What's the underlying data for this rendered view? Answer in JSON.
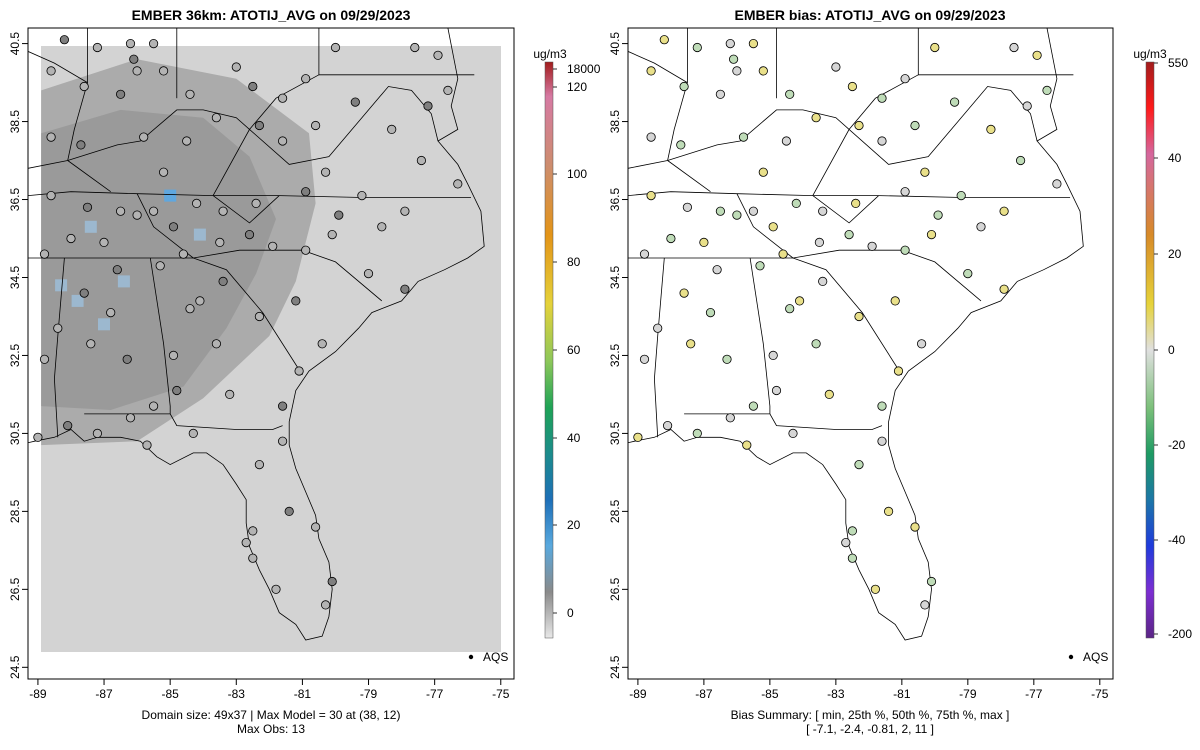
{
  "panels": [
    {
      "title": "EMBER 36km: ATOTIJ_AVG on 09/29/2023",
      "footer": [
        "Domain size: 49x37 | Max Model = 30 at (38, 12)",
        "Max Obs: 13"
      ],
      "legend_label": "AQS",
      "colorbar": {
        "unit": "ug/m3",
        "ticks": [
          "18000",
          "120",
          "100",
          "80",
          "60",
          "40",
          "20",
          "0"
        ]
      }
    },
    {
      "title": "EMBER bias: ATOTIJ_AVG on 09/29/2023",
      "footer": [
        "Bias Summary: [ min, 25th %, 50th %, 75th %, max ]",
        "[ -7.1,   -2.4,   -0.81,   2,   11 ]"
      ],
      "legend_label": "AQS",
      "colorbar": {
        "unit": "ug/m3",
        "ticks": [
          "550",
          "40",
          "20",
          "0",
          "-20",
          "-40",
          "-200"
        ]
      }
    }
  ],
  "axes": {
    "x_ticks": [
      "-89",
      "-87",
      "-85",
      "-83",
      "-81",
      "-79",
      "-77",
      "-75"
    ],
    "y_ticks": [
      "40.5",
      "38.5",
      "36.5",
      "34.5",
      "32.5",
      "30.5",
      "28.5",
      "26.5",
      "24.5"
    ],
    "xlim": [
      -89.3,
      -74.6
    ],
    "ylim": [
      24.2,
      40.9
    ]
  },
  "colors": {
    "domain_fill": "#d3d3d3",
    "model_dark": "#9a9a9a",
    "model_mid": "#ababab",
    "model_high": "#5fa7df",
    "bias_positive": "#e9e08a",
    "bias_near_zero": "#d6d6d6",
    "bias_negative": "#bfdcb8"
  },
  "chart_data": {
    "type": "map",
    "stations": [
      {
        "lon": -88.2,
        "lat": 40.6
      },
      {
        "lon": -87.2,
        "lat": 40.4
      },
      {
        "lon": -86.2,
        "lat": 40.5
      },
      {
        "lon": -85.5,
        "lat": 40.5
      },
      {
        "lon": -86.1,
        "lat": 40.1
      },
      {
        "lon": -86.0,
        "lat": 39.8
      },
      {
        "lon": -88.6,
        "lat": 39.8
      },
      {
        "lon": -87.6,
        "lat": 39.4
      },
      {
        "lon": -86.5,
        "lat": 39.2
      },
      {
        "lon": -85.2,
        "lat": 39.8
      },
      {
        "lon": -84.4,
        "lat": 39.2
      },
      {
        "lon": -83.0,
        "lat": 39.9
      },
      {
        "lon": -82.5,
        "lat": 39.4
      },
      {
        "lon": -81.6,
        "lat": 39.1
      },
      {
        "lon": -80.9,
        "lat": 39.6
      },
      {
        "lon": -80.0,
        "lat": 40.4
      },
      {
        "lon": -79.4,
        "lat": 39.0
      },
      {
        "lon": -77.6,
        "lat": 40.4
      },
      {
        "lon": -76.9,
        "lat": 40.2
      },
      {
        "lon": -76.6,
        "lat": 39.3
      },
      {
        "lon": -77.2,
        "lat": 38.9
      },
      {
        "lon": -78.3,
        "lat": 38.3
      },
      {
        "lon": -85.8,
        "lat": 38.1
      },
      {
        "lon": -84.5,
        "lat": 38.0
      },
      {
        "lon": -82.3,
        "lat": 38.4
      },
      {
        "lon": -80.6,
        "lat": 38.4
      },
      {
        "lon": -81.6,
        "lat": 38.0
      },
      {
        "lon": -83.6,
        "lat": 38.6
      },
      {
        "lon": -87.7,
        "lat": 37.9
      },
      {
        "lon": -88.6,
        "lat": 38.1
      },
      {
        "lon": -85.2,
        "lat": 37.2
      },
      {
        "lon": -86.5,
        "lat": 36.2
      },
      {
        "lon": -87.5,
        "lat": 36.3
      },
      {
        "lon": -88.6,
        "lat": 36.6
      },
      {
        "lon": -86.0,
        "lat": 36.1
      },
      {
        "lon": -85.5,
        "lat": 36.2
      },
      {
        "lon": -84.9,
        "lat": 35.8
      },
      {
        "lon": -84.2,
        "lat": 36.4
      },
      {
        "lon": -83.4,
        "lat": 36.2
      },
      {
        "lon": -82.4,
        "lat": 36.4
      },
      {
        "lon": -82.6,
        "lat": 35.6
      },
      {
        "lon": -83.5,
        "lat": 35.4
      },
      {
        "lon": -84.6,
        "lat": 35.1
      },
      {
        "lon": -85.3,
        "lat": 34.8
      },
      {
        "lon": -86.6,
        "lat": 34.7
      },
      {
        "lon": -87.0,
        "lat": 35.4
      },
      {
        "lon": -88.0,
        "lat": 35.5
      },
      {
        "lon": -88.8,
        "lat": 35.1
      },
      {
        "lon": -87.6,
        "lat": 34.1
      },
      {
        "lon": -86.8,
        "lat": 33.6
      },
      {
        "lon": -88.4,
        "lat": 33.2
      },
      {
        "lon": -87.4,
        "lat": 32.8
      },
      {
        "lon": -86.3,
        "lat": 32.4
      },
      {
        "lon": -88.8,
        "lat": 32.4
      },
      {
        "lon": -84.1,
        "lat": 33.9
      },
      {
        "lon": -84.4,
        "lat": 33.7
      },
      {
        "lon": -83.4,
        "lat": 34.4
      },
      {
        "lon": -82.3,
        "lat": 33.5
      },
      {
        "lon": -83.6,
        "lat": 32.8
      },
      {
        "lon": -84.9,
        "lat": 32.5
      },
      {
        "lon": -81.2,
        "lat": 33.9
      },
      {
        "lon": -80.9,
        "lat": 35.2
      },
      {
        "lon": -81.9,
        "lat": 35.3
      },
      {
        "lon": -80.1,
        "lat": 35.6
      },
      {
        "lon": -79.9,
        "lat": 36.1
      },
      {
        "lon": -78.6,
        "lat": 35.8
      },
      {
        "lon": -77.9,
        "lat": 36.2
      },
      {
        "lon": -79.2,
        "lat": 36.6
      },
      {
        "lon": -80.9,
        "lat": 36.7
      },
      {
        "lon": -80.3,
        "lat": 37.2
      },
      {
        "lon": -77.4,
        "lat": 37.5
      },
      {
        "lon": -76.3,
        "lat": 36.9
      },
      {
        "lon": -77.9,
        "lat": 34.2
      },
      {
        "lon": -79.0,
        "lat": 34.6
      },
      {
        "lon": -80.4,
        "lat": 32.8
      },
      {
        "lon": -81.1,
        "lat": 32.1
      },
      {
        "lon": -81.6,
        "lat": 31.2
      },
      {
        "lon": -84.3,
        "lat": 30.5
      },
      {
        "lon": -85.7,
        "lat": 30.2
      },
      {
        "lon": -87.2,
        "lat": 30.5
      },
      {
        "lon": -88.1,
        "lat": 30.7
      },
      {
        "lon": -89.0,
        "lat": 30.4
      },
      {
        "lon": -82.3,
        "lat": 29.7
      },
      {
        "lon": -81.6,
        "lat": 30.3
      },
      {
        "lon": -81.4,
        "lat": 28.5
      },
      {
        "lon": -82.5,
        "lat": 28.0
      },
      {
        "lon": -82.7,
        "lat": 27.7
      },
      {
        "lon": -80.6,
        "lat": 28.1
      },
      {
        "lon": -80.1,
        "lat": 26.7
      },
      {
        "lon": -80.3,
        "lat": 26.1
      },
      {
        "lon": -81.8,
        "lat": 26.5
      },
      {
        "lon": -82.5,
        "lat": 27.3
      },
      {
        "lon": -84.8,
        "lat": 31.6
      },
      {
        "lon": -83.2,
        "lat": 31.5
      },
      {
        "lon": -85.5,
        "lat": 31.2
      },
      {
        "lon": -86.2,
        "lat": 30.9
      }
    ],
    "model_highs": [
      {
        "lon": -85.0,
        "lat": 36.6
      },
      {
        "lon": -84.1,
        "lat": 35.6
      },
      {
        "lon": -87.4,
        "lat": 35.8
      },
      {
        "lon": -87.8,
        "lat": 33.9
      },
      {
        "lon": -86.4,
        "lat": 34.4
      },
      {
        "lon": -87.0,
        "lat": 33.3
      },
      {
        "lon": -88.3,
        "lat": 34.3
      }
    ],
    "model_dark_region": [
      [
        -88.9,
        38.2
      ],
      [
        -86.5,
        38.8
      ],
      [
        -84.0,
        38.6
      ],
      [
        -82.6,
        37.6
      ],
      [
        -81.8,
        36.0
      ],
      [
        -82.4,
        34.6
      ],
      [
        -83.3,
        33.2
      ],
      [
        -84.6,
        31.7
      ],
      [
        -86.8,
        31.1
      ],
      [
        -88.9,
        31.2
      ]
    ],
    "model_mid_region": [
      [
        -88.9,
        39.3
      ],
      [
        -86.0,
        40.1
      ],
      [
        -83.0,
        39.6
      ],
      [
        -80.8,
        38.2
      ],
      [
        -80.6,
        36.4
      ],
      [
        -81.2,
        34.4
      ],
      [
        -82.0,
        33.0
      ],
      [
        -84.0,
        31.4
      ],
      [
        -86.0,
        30.3
      ],
      [
        -88.9,
        30.2
      ]
    ]
  }
}
